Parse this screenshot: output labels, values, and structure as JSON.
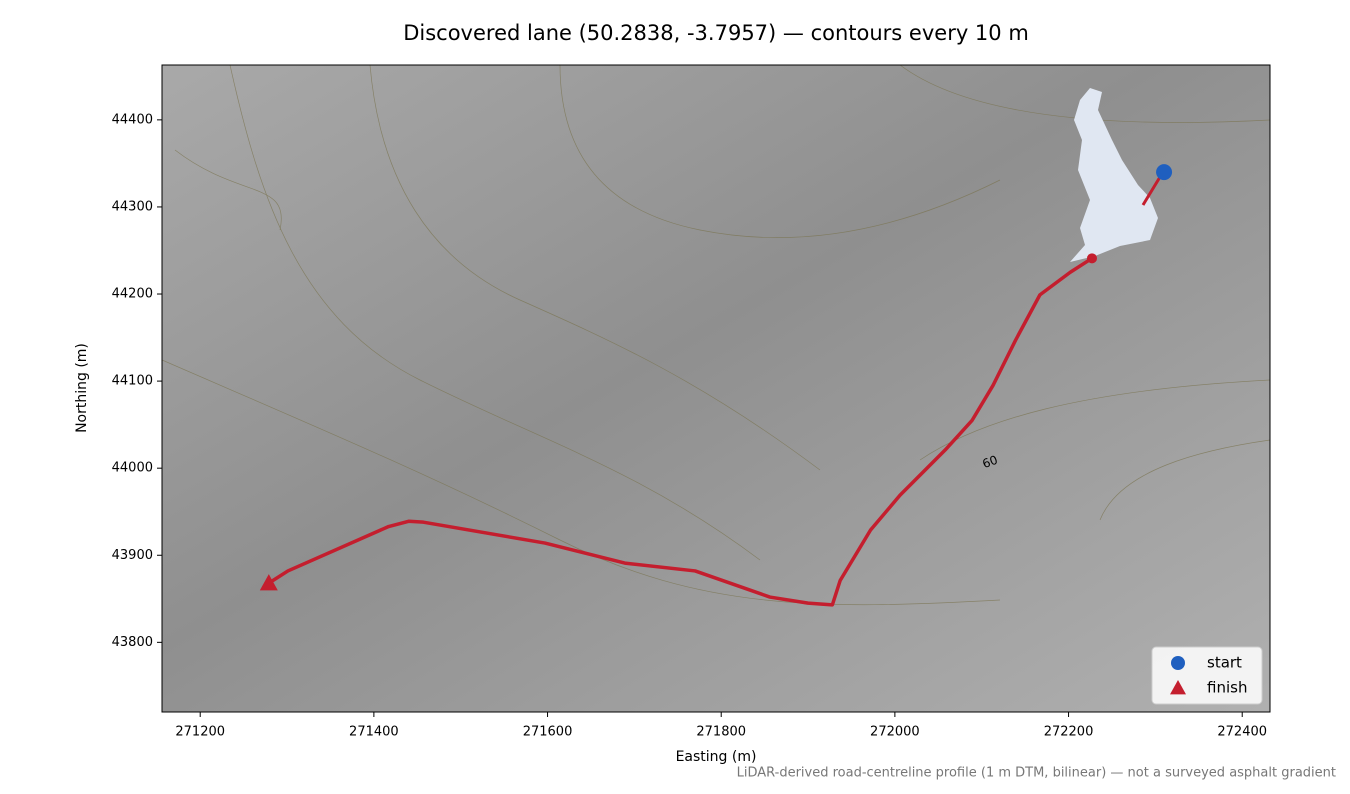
{
  "chart_data": {
    "type": "line",
    "title": "Discovered lane (50.2838, -3.7957) — contours every 10 m",
    "x_label": "Easting (m)",
    "y_label": "Northing (m)",
    "footnote": "LiDAR-derived road-centreline profile (1 m DTM, bilinear) — not a surveyed asphalt gradient",
    "contour_label": "60",
    "xlim": [
      271156,
      272432
    ],
    "ylim": [
      43720,
      44463
    ],
    "xticks": [
      271200,
      271400,
      271600,
      271800,
      272000,
      272200,
      272400
    ],
    "yticks": [
      43800,
      43900,
      44000,
      44100,
      44200,
      44300,
      44400
    ],
    "series": [
      {
        "name": "route",
        "color": "#c41e2e",
        "x": [
          271279,
          271301,
          271417,
          271440,
          271457,
          271597,
          271689,
          271770,
          271856,
          271900,
          271928,
          271937,
          271972,
          272006,
          272058,
          272089,
          272113,
          272139,
          272167,
          272202,
          272227
        ],
        "values": [
          43868,
          43882,
          43933,
          43939,
          43938,
          43914,
          43891,
          43882,
          43852,
          43845,
          43843,
          43871,
          43929,
          43969,
          44021,
          44055,
          44095,
          44147,
          44199,
          44225,
          44241
        ]
      }
    ],
    "start": {
      "name": "start",
      "color": "#1f5fbf",
      "x": 272310,
      "y": 44340
    },
    "finish": {
      "name": "finish",
      "color": "#c41e2e",
      "x": 271279,
      "y": 43868
    },
    "legend": "lower right"
  }
}
